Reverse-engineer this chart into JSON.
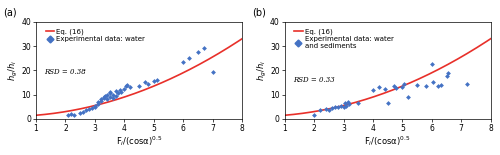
{
  "panel_a": {
    "label": "(a)",
    "legend_eq": "Eq. (16)",
    "legend_data": "Experimental data: water",
    "rsd_text": "RSD = 0.38",
    "scatter_x": [
      2.1,
      2.2,
      2.3,
      2.5,
      2.6,
      2.7,
      2.8,
      2.9,
      3.0,
      3.0,
      3.1,
      3.1,
      3.2,
      3.2,
      3.3,
      3.3,
      3.35,
      3.4,
      3.4,
      3.5,
      3.5,
      3.5,
      3.6,
      3.6,
      3.7,
      3.7,
      3.8,
      3.85,
      3.9,
      4.0,
      4.05,
      4.1,
      4.2,
      4.5,
      4.7,
      4.8,
      5.0,
      5.1,
      6.0,
      6.2,
      6.5,
      6.7,
      7.0
    ],
    "scatter_y": [
      1.5,
      2.0,
      1.8,
      2.5,
      3.0,
      3.5,
      4.0,
      4.5,
      5.0,
      5.5,
      7.0,
      6.0,
      8.0,
      7.5,
      9.0,
      8.5,
      9.5,
      8.0,
      10.0,
      9.0,
      10.5,
      11.0,
      8.5,
      10.0,
      9.5,
      11.5,
      10.5,
      12.0,
      11.0,
      12.5,
      13.5,
      14.0,
      13.0,
      13.5,
      15.0,
      14.5,
      15.5,
      16.0,
      23.5,
      25.0,
      27.5,
      29.0,
      19.5
    ]
  },
  "panel_b": {
    "label": "(b)",
    "legend_eq": "Eq. (16)",
    "legend_data": "Experimental data: water\nand sediments",
    "rsd_text": "RSD = 0.33",
    "scatter_x": [
      2.0,
      2.2,
      2.4,
      2.5,
      2.6,
      2.7,
      2.8,
      2.9,
      3.0,
      3.05,
      3.1,
      3.15,
      3.2,
      3.5,
      4.0,
      4.2,
      4.4,
      4.5,
      4.7,
      4.8,
      5.0,
      5.05,
      5.2,
      5.5,
      5.8,
      6.0,
      6.05,
      6.2,
      6.3,
      6.5,
      6.55,
      7.2
    ],
    "scatter_y": [
      1.8,
      3.5,
      4.0,
      3.8,
      4.5,
      5.0,
      4.8,
      5.5,
      5.0,
      6.5,
      5.5,
      6.8,
      6.0,
      6.5,
      12.0,
      13.0,
      12.5,
      6.5,
      13.5,
      12.8,
      13.0,
      14.5,
      9.0,
      14.0,
      13.5,
      22.5,
      15.0,
      13.5,
      14.0,
      17.5,
      19.0,
      14.5
    ]
  },
  "xlim": [
    1,
    8
  ],
  "ylim": [
    0,
    40
  ],
  "xticks": [
    1,
    2,
    3,
    4,
    5,
    6,
    7,
    8
  ],
  "yticks": [
    0,
    10,
    20,
    30,
    40
  ],
  "xlabel": "F$_i$/(cosα)$^{0.5}$",
  "ylabel": "$h_g$/$h_i$",
  "scatter_color": "#4472C4",
  "scatter_marker": "D",
  "scatter_size": 6,
  "line_color": "#E8302A",
  "line_width": 1.2,
  "bg_color": "#FFFFFF",
  "figsize": [
    5.0,
    1.55
  ],
  "dpi": 100
}
